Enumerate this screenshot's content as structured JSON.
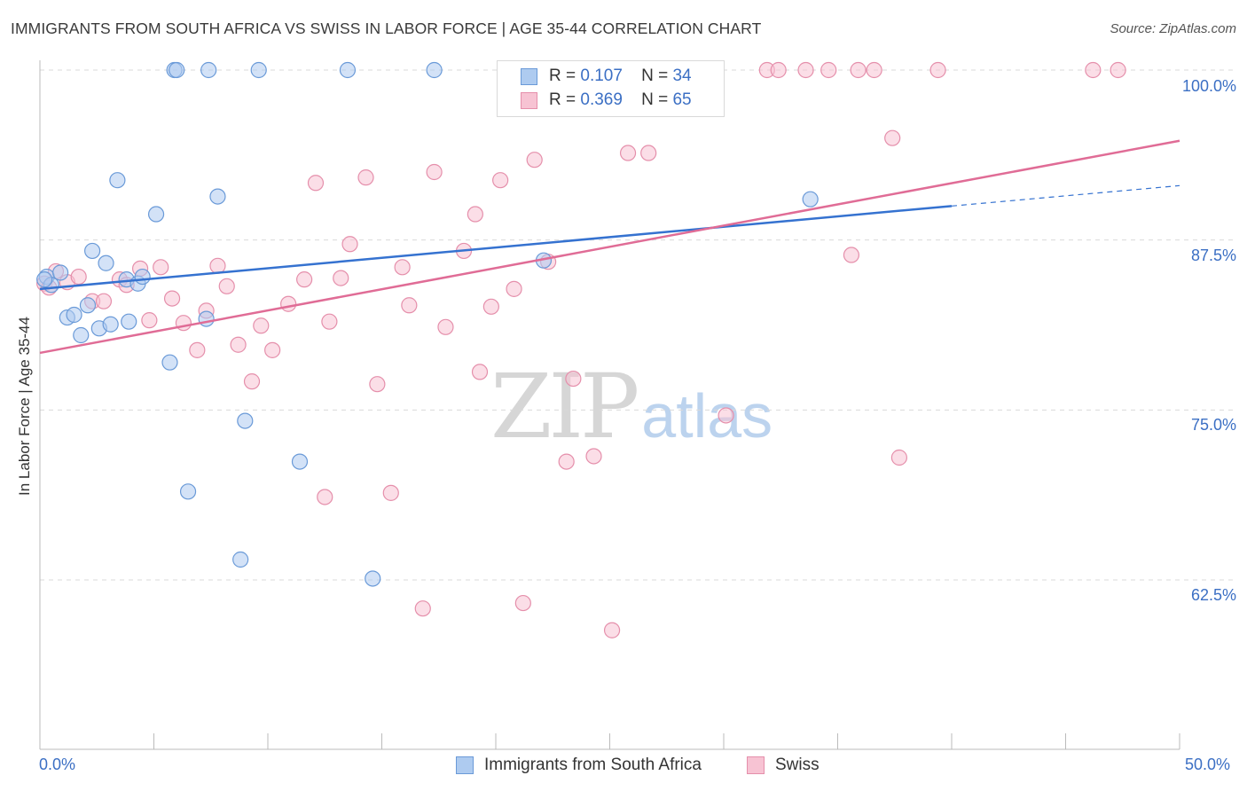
{
  "title": "IMMIGRANTS FROM SOUTH AFRICA VS SWISS IN LABOR FORCE | AGE 35-44 CORRELATION CHART",
  "source": "Source: ZipAtlas.com",
  "watermark": {
    "zip": "ZIP",
    "atlas": "atlas"
  },
  "legend": {
    "r_label": "R =",
    "n_label": "N =",
    "series_a": {
      "r": "0.107",
      "n": "34"
    },
    "series_b": {
      "r": "0.369",
      "n": "65"
    }
  },
  "colors": {
    "series_a_fill": "#aecbf0",
    "series_a_stroke": "#6a9ad8",
    "series_a_line": "#3572d0",
    "series_b_fill": "#f7c3d3",
    "series_b_stroke": "#e58fab",
    "series_b_line": "#e06c96",
    "tick_text": "#3b6fc4",
    "grid": "#d9d9d9"
  },
  "chart_data": {
    "type": "scatter",
    "title": "IMMIGRANTS FROM SOUTH AFRICA VS SWISS IN LABOR FORCE | AGE 35-44 CORRELATION CHART",
    "xlabel": "",
    "ylabel": "In Labor Force | Age 35-44",
    "xlim": [
      0,
      50
    ],
    "ylim": [
      50,
      101
    ],
    "x_tick_labels": [
      "0.0%",
      "50.0%"
    ],
    "y_ticks": [
      62.5,
      75.0,
      87.5,
      100.0
    ],
    "y_tick_labels": [
      "62.5%",
      "75.0%",
      "87.5%",
      "100.0%"
    ],
    "grid": "horizontal dashed",
    "legend_position": "top-center",
    "series": [
      {
        "name": "Immigrants from South Africa",
        "points": [
          [
            0.3,
            84.8
          ],
          [
            0.5,
            84.2
          ],
          [
            0.9,
            85.1
          ],
          [
            1.2,
            81.8
          ],
          [
            1.5,
            82.0
          ],
          [
            1.8,
            80.5
          ],
          [
            2.1,
            82.7
          ],
          [
            2.3,
            86.7
          ],
          [
            2.6,
            81.0
          ],
          [
            2.9,
            85.8
          ],
          [
            3.1,
            81.3
          ],
          [
            3.4,
            91.9
          ],
          [
            3.8,
            84.6
          ],
          [
            3.9,
            81.5
          ],
          [
            4.3,
            84.3
          ],
          [
            4.5,
            84.8
          ],
          [
            5.1,
            89.4
          ],
          [
            5.7,
            78.5
          ],
          [
            5.9,
            100.0
          ],
          [
            6.0,
            100.0
          ],
          [
            6.5,
            69.0
          ],
          [
            7.3,
            81.7
          ],
          [
            7.4,
            100.0
          ],
          [
            7.8,
            90.7
          ],
          [
            8.8,
            64.0
          ],
          [
            9.0,
            74.2
          ],
          [
            9.6,
            100.0
          ],
          [
            11.4,
            71.2
          ],
          [
            13.5,
            100.0
          ],
          [
            14.6,
            62.6
          ],
          [
            17.3,
            100.0
          ],
          [
            22.1,
            86.0
          ],
          [
            33.8,
            90.5
          ],
          [
            0.2,
            84.6
          ]
        ],
        "trend": {
          "x": [
            0,
            40
          ],
          "y": [
            83.9,
            90.0
          ],
          "dashed_extension": {
            "x": [
              40,
              50
            ],
            "y": [
              90.0,
              91.5
            ]
          }
        }
      },
      {
        "name": "Swiss",
        "points": [
          [
            0.2,
            84.3
          ],
          [
            0.7,
            85.2
          ],
          [
            1.2,
            84.4
          ],
          [
            1.7,
            84.8
          ],
          [
            2.3,
            83.0
          ],
          [
            2.8,
            83.0
          ],
          [
            3.5,
            84.6
          ],
          [
            3.8,
            84.2
          ],
          [
            4.4,
            85.4
          ],
          [
            4.8,
            81.6
          ],
          [
            5.3,
            85.5
          ],
          [
            5.8,
            83.2
          ],
          [
            6.3,
            81.4
          ],
          [
            6.9,
            79.4
          ],
          [
            7.3,
            82.3
          ],
          [
            7.8,
            85.6
          ],
          [
            8.2,
            84.1
          ],
          [
            8.7,
            79.8
          ],
          [
            9.3,
            77.1
          ],
          [
            9.7,
            81.2
          ],
          [
            10.2,
            79.4
          ],
          [
            10.9,
            82.8
          ],
          [
            11.6,
            84.6
          ],
          [
            12.1,
            91.7
          ],
          [
            12.5,
            68.6
          ],
          [
            12.7,
            81.5
          ],
          [
            13.2,
            84.7
          ],
          [
            13.6,
            87.2
          ],
          [
            14.3,
            92.1
          ],
          [
            14.8,
            76.9
          ],
          [
            15.4,
            68.9
          ],
          [
            15.9,
            85.5
          ],
          [
            16.2,
            82.7
          ],
          [
            16.8,
            60.4
          ],
          [
            17.3,
            92.5
          ],
          [
            17.8,
            81.1
          ],
          [
            18.6,
            86.7
          ],
          [
            19.1,
            89.4
          ],
          [
            19.3,
            77.8
          ],
          [
            19.8,
            82.6
          ],
          [
            20.2,
            91.9
          ],
          [
            20.8,
            83.9
          ],
          [
            21.2,
            60.8
          ],
          [
            21.7,
            93.4
          ],
          [
            22.3,
            85.9
          ],
          [
            23.1,
            71.2
          ],
          [
            23.4,
            77.3
          ],
          [
            24.3,
            71.6
          ],
          [
            25.1,
            58.8
          ],
          [
            25.8,
            93.9
          ],
          [
            26.7,
            93.9
          ],
          [
            30.1,
            74.6
          ],
          [
            31.9,
            100.0
          ],
          [
            32.4,
            100.0
          ],
          [
            33.6,
            100.0
          ],
          [
            34.6,
            100.0
          ],
          [
            35.6,
            86.4
          ],
          [
            35.9,
            100.0
          ],
          [
            36.6,
            100.0
          ],
          [
            37.4,
            95.0
          ],
          [
            37.7,
            71.5
          ],
          [
            39.4,
            100.0
          ],
          [
            46.2,
            100.0
          ],
          [
            47.3,
            100.0
          ],
          [
            0.4,
            84.0
          ]
        ],
        "trend": {
          "x": [
            0,
            50
          ],
          "y": [
            79.2,
            94.8
          ]
        }
      }
    ]
  },
  "bottom_legend": [
    "Immigrants from South Africa",
    "Swiss"
  ]
}
